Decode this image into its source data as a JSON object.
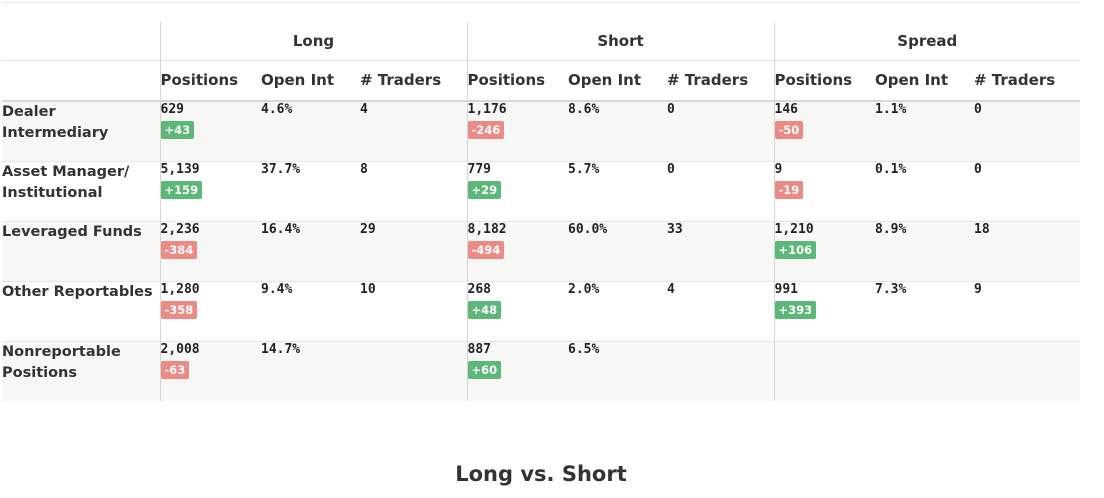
{
  "groups": [
    "Long",
    "Short",
    "Spread"
  ],
  "sub_headers": [
    "Positions",
    "Open Int",
    "# Traders"
  ],
  "rows": [
    {
      "label": "Dealer Intermediary",
      "long": {
        "positions": "629",
        "change": "+43",
        "open_int": "4.6%",
        "traders": "4"
      },
      "short": {
        "positions": "1,176",
        "change": "-246",
        "open_int": "8.6%",
        "traders": "0"
      },
      "spread": {
        "positions": "146",
        "change": "-50",
        "open_int": "1.1%",
        "traders": "0"
      }
    },
    {
      "label": "Asset Manager/ Institutional",
      "long": {
        "positions": "5,139",
        "change": "+159",
        "open_int": "37.7%",
        "traders": "8"
      },
      "short": {
        "positions": "779",
        "change": "+29",
        "open_int": "5.7%",
        "traders": "0"
      },
      "spread": {
        "positions": "9",
        "change": "-19",
        "open_int": "0.1%",
        "traders": "0"
      }
    },
    {
      "label": "Leveraged Funds",
      "long": {
        "positions": "2,236",
        "change": "-384",
        "open_int": "16.4%",
        "traders": "29"
      },
      "short": {
        "positions": "8,182",
        "change": "-494",
        "open_int": "60.0%",
        "traders": "33"
      },
      "spread": {
        "positions": "1,210",
        "change": "+106",
        "open_int": "8.9%",
        "traders": "18"
      }
    },
    {
      "label": "Other Reportables",
      "long": {
        "positions": "1,280",
        "change": "-358",
        "open_int": "9.4%",
        "traders": "10"
      },
      "short": {
        "positions": "268",
        "change": "+48",
        "open_int": "2.0%",
        "traders": "4"
      },
      "spread": {
        "positions": "991",
        "change": "+393",
        "open_int": "7.3%",
        "traders": "9"
      }
    },
    {
      "label": "Nonreportable Positions",
      "long": {
        "positions": "2,008",
        "change": "-63",
        "open_int": "14.7%",
        "traders": ""
      },
      "short": {
        "positions": "887",
        "change": "+60",
        "open_int": "6.5%",
        "traders": ""
      },
      "spread": {
        "positions": "",
        "change": "",
        "open_int": "",
        "traders": ""
      }
    }
  ],
  "section_title": "Long vs. Short",
  "colors": {
    "positive": "#5cb878",
    "negative": "#ec8a85"
  }
}
